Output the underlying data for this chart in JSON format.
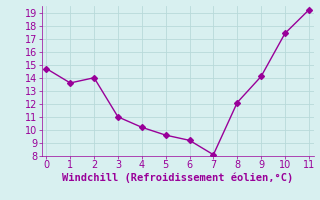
{
  "x": [
    0,
    1,
    2,
    3,
    4,
    5,
    6,
    7,
    8,
    9,
    10,
    11
  ],
  "y": [
    14.7,
    13.6,
    14.0,
    11.0,
    10.2,
    9.6,
    9.2,
    8.1,
    12.1,
    14.1,
    17.4,
    19.2
  ],
  "xlabel": "Windchill (Refroidissement éolien,°C)",
  "ylim": [
    8,
    19.5
  ],
  "xlim": [
    -0.2,
    11.2
  ],
  "yticks": [
    8,
    9,
    10,
    11,
    12,
    13,
    14,
    15,
    16,
    17,
    18,
    19
  ],
  "xticks": [
    0,
    1,
    2,
    3,
    4,
    5,
    6,
    7,
    8,
    9,
    10,
    11
  ],
  "line_color": "#990099",
  "marker": "D",
  "marker_size": 3,
  "bg_color": "#d8f0f0",
  "grid_color": "#b8dada",
  "tick_color": "#990099",
  "label_color": "#990099",
  "xlabel_fontsize": 7.5,
  "tick_fontsize": 7
}
